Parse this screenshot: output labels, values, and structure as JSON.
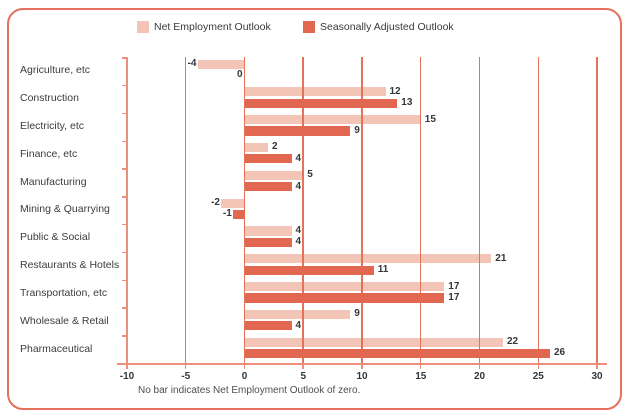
{
  "legend": {
    "items": [
      {
        "label": "Net Employment Outlook",
        "color": "#F3C5B6"
      },
      {
        "label": "Seasonally Adjusted Outlook",
        "color": "#E16750"
      }
    ]
  },
  "chart_data": {
    "type": "bar",
    "orientation": "horizontal",
    "title": "",
    "xlabel": "",
    "ylabel": "",
    "categories": [
      "Agriculture, etc",
      "Construction",
      "Electricity, etc",
      "Finance, etc",
      "Manufacturing",
      "Mining & Quarrying",
      "Public & Social",
      "Restaurants & Hotels",
      "Transportation, etc",
      "Wholesale & Retail",
      "Pharmaceutical"
    ],
    "series": [
      {
        "name": "Net Employment Outlook",
        "color": "#F3C5B6",
        "values": [
          -4,
          12,
          15,
          2,
          5,
          -2,
          4,
          21,
          17,
          9,
          22
        ]
      },
      {
        "name": "Seasonally Adjusted Outlook",
        "color": "#E16750",
        "values": [
          0,
          13,
          9,
          4,
          4,
          -1,
          4,
          11,
          17,
          4,
          26
        ]
      }
    ],
    "x_ticks": [
      -10,
      -5,
      0,
      5,
      10,
      15,
      20,
      25,
      30
    ],
    "xlim": [
      -10,
      30.8
    ],
    "grid": true,
    "legend_position": "top",
    "note": "No bar indicates Net Employment Outlook of zero."
  },
  "colors": {
    "frame_border": "#E5705B",
    "grid_line": "#E4735C",
    "axis_line": "#EC8F7C",
    "value_text": "#33363d",
    "category_text": "#3c3c3c",
    "note_text": "#4f4f4f"
  }
}
